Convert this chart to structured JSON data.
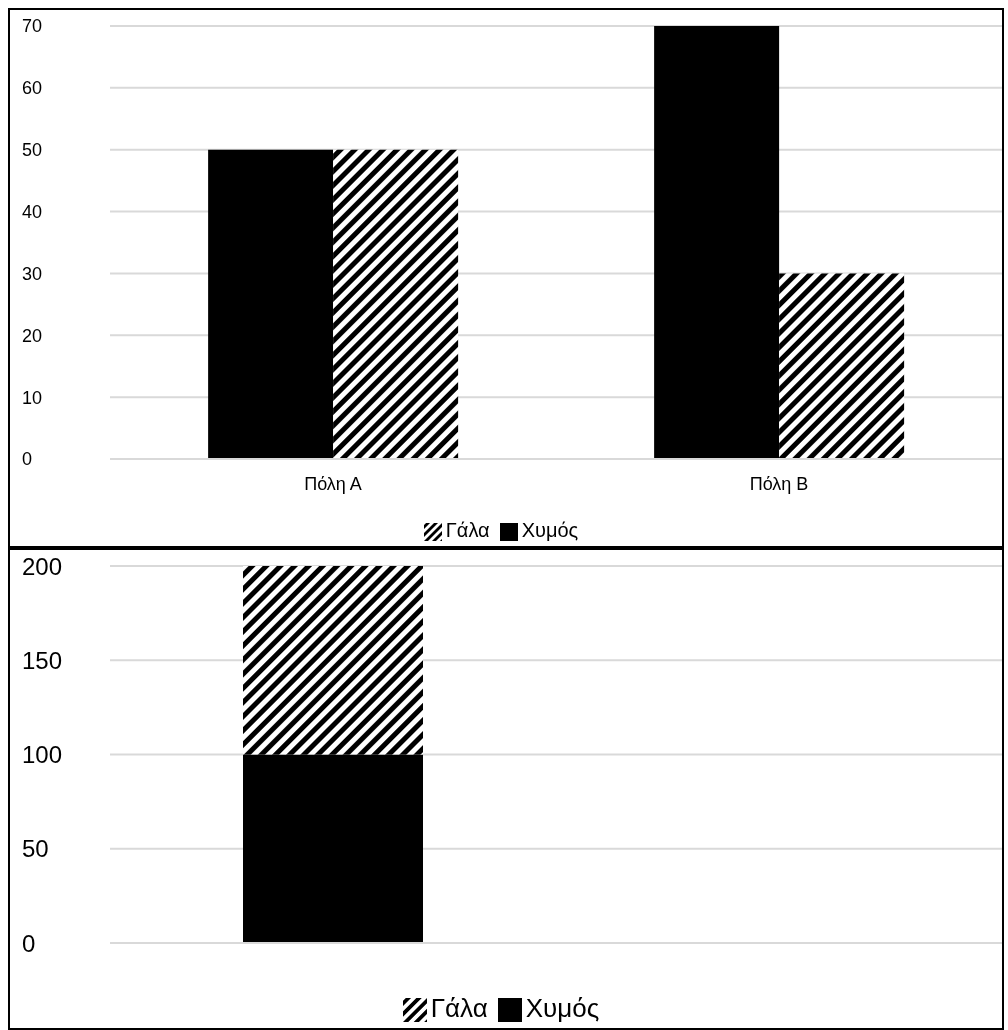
{
  "chart_data": [
    {
      "type": "bar",
      "categories": [
        "Πόλη Α",
        "Πόλη Β"
      ],
      "series": [
        {
          "name": "Χυμός",
          "color": "#000000",
          "values": [
            50,
            70
          ]
        },
        {
          "name": "Γάλα",
          "color": "#000000",
          "values": [
            50,
            30
          ]
        }
      ],
      "ylim": [
        0,
        70
      ],
      "yticks": [
        0,
        10,
        20,
        30,
        40,
        50,
        60,
        70
      ],
      "grid": "y",
      "legend": "bottom"
    },
    {
      "type": "bar",
      "stacked": true,
      "categories": [
        null,
        null
      ],
      "series": [
        {
          "name": "Χυμός",
          "color": "#000000",
          "values": [
            100,
            null
          ]
        },
        {
          "name": "Γάλα",
          "color": "#000000",
          "values": [
            100,
            null
          ]
        }
      ],
      "ylim": [
        0,
        200
      ],
      "yticks": [
        0,
        50,
        100,
        150,
        200
      ],
      "grid": "y",
      "legend": "bottom"
    }
  ]
}
